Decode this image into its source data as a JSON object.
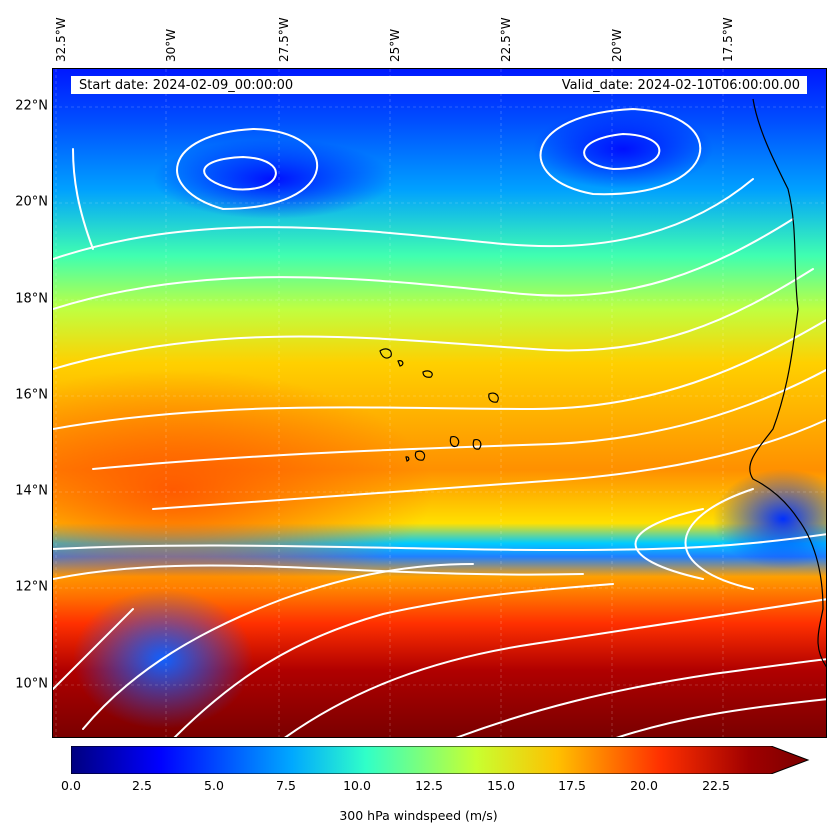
{
  "header": {
    "start_date": "Start date: 2024-02-09_00:00:00",
    "valid_date": "Valid_date: 2024-02-10T06:00:00.00"
  },
  "axes": {
    "lon_labels": [
      "32.5°W",
      "30°W",
      "27.5°W",
      "25°W",
      "22.5°W",
      "20°W",
      "17.5°W"
    ],
    "lat_labels": [
      "22°N",
      "20°N",
      "18°N",
      "16°N",
      "14°N",
      "12°N",
      "10°N"
    ]
  },
  "colorbar": {
    "label": "300 hPa windspeed (m/s)",
    "ticks": [
      "0.0",
      "2.5",
      "5.0",
      "7.5",
      "10.0",
      "12.5",
      "15.0",
      "17.5",
      "20.0",
      "22.5"
    ],
    "min": 0,
    "max": 25,
    "extend": "max",
    "colormap": "jet"
  },
  "colors": {
    "coastline": "#000000",
    "streamlines": "#ffffff",
    "label_box": "#ffffff"
  }
}
